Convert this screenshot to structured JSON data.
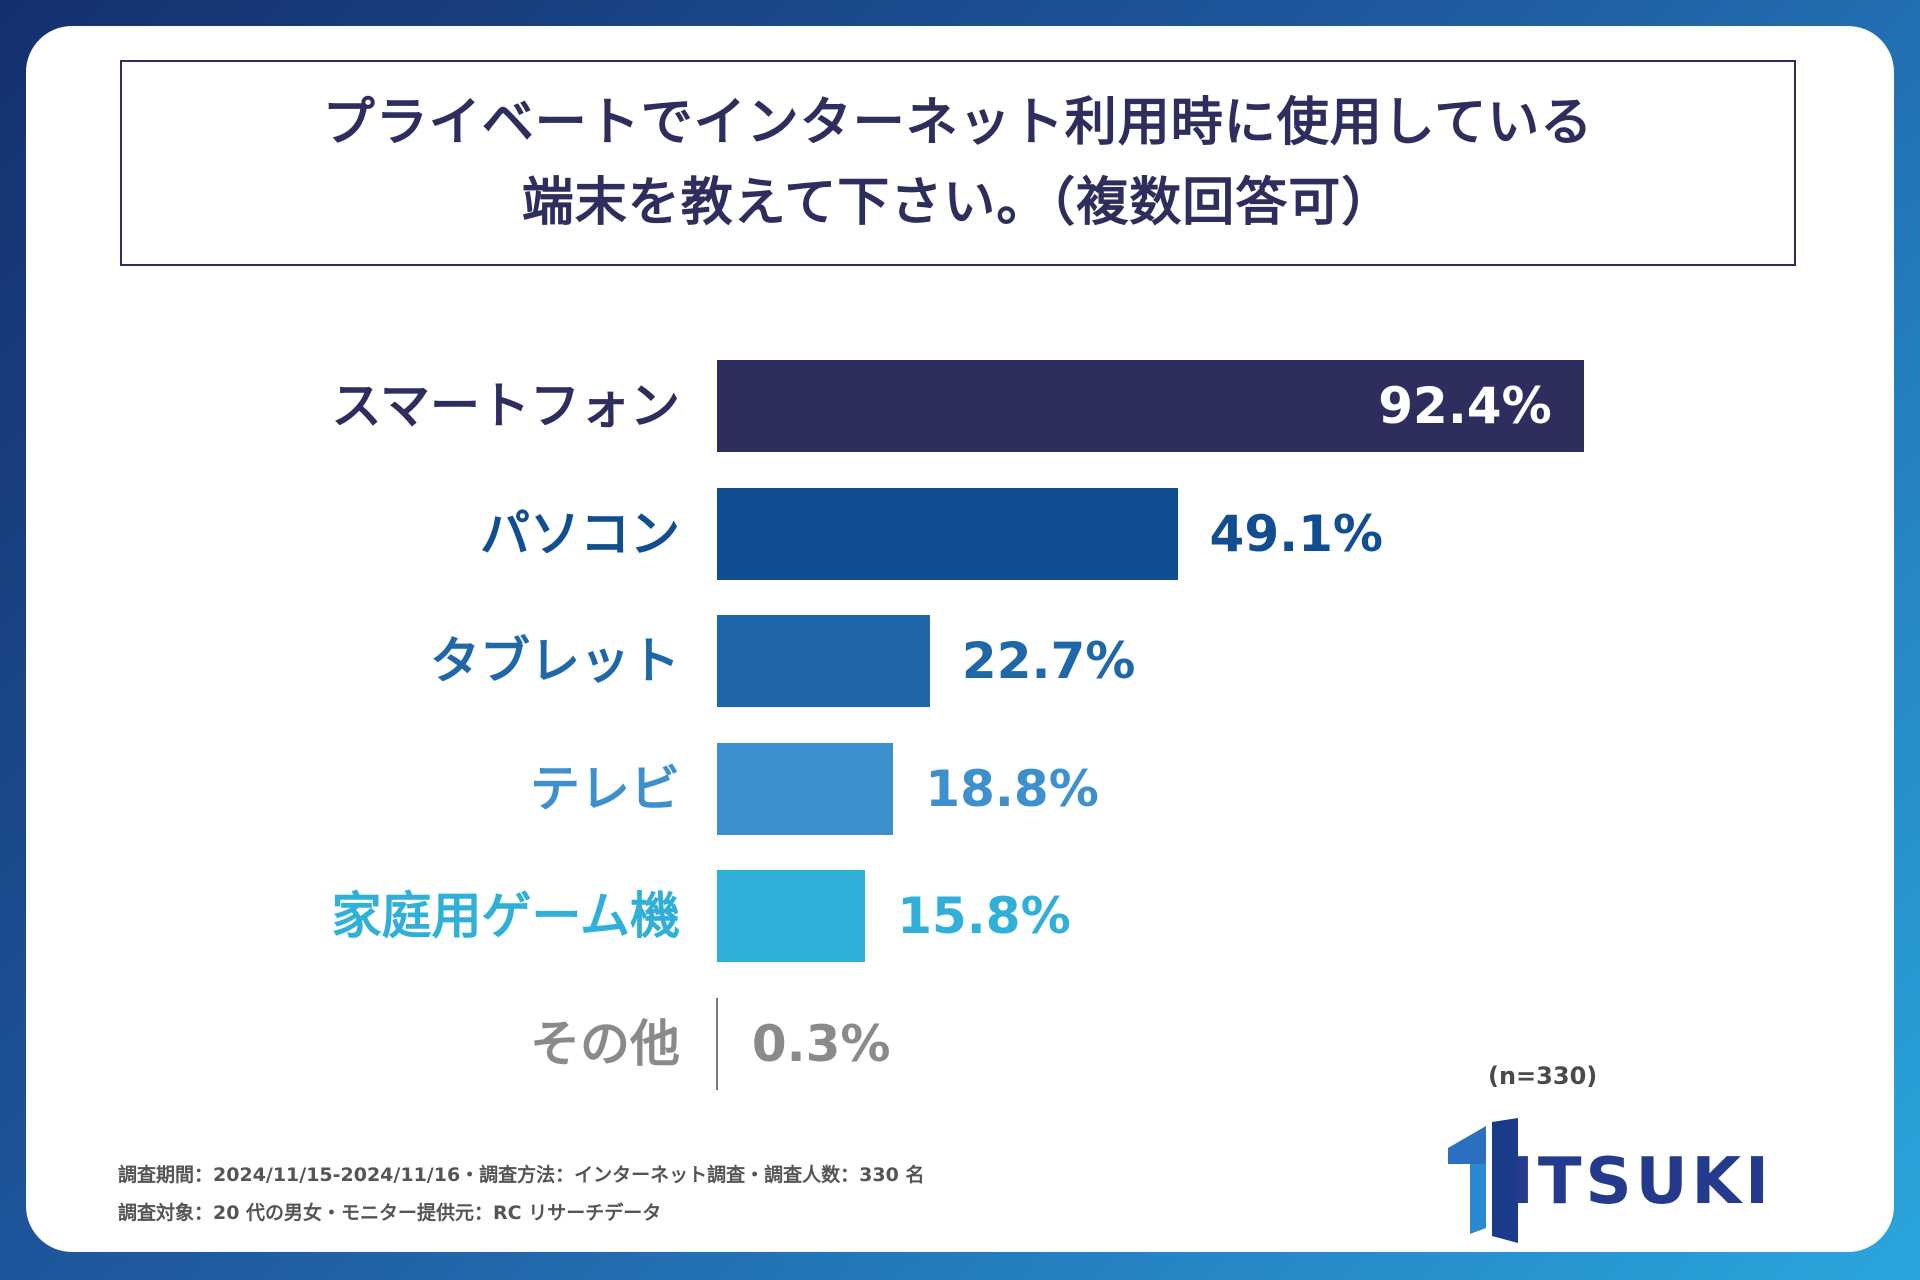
{
  "chart_data": {
    "type": "bar",
    "orientation": "horizontal",
    "title": "プライベートでインターネット利用時に使用している端末を教えて下さい。（複数回答可）",
    "title_lines": [
      "プライベートでインターネット利用時に使用している",
      "端末を教えて下さい。（複数回答可）"
    ],
    "categories": [
      "スマートフォン",
      "パソコン",
      "タブレット",
      "テレビ",
      "家庭用ゲーム機",
      "その他"
    ],
    "values": [
      92.4,
      49.1,
      22.7,
      18.8,
      15.8,
      0.3
    ],
    "value_labels": [
      "92.4%",
      "49.1%",
      "22.7%",
      "18.8%",
      "15.8%",
      "0.3%"
    ],
    "colors": [
      "#2e2e5e",
      "#114d91",
      "#1f67a8",
      "#3e90cc",
      "#30b0d9",
      "#8a8a8a"
    ],
    "unit": "%",
    "xlim": [
      0,
      100
    ],
    "sample_note": "(n=330)"
  },
  "footer": {
    "line1": "調査期間：2024/11/15-2024/11/16・調査方法：インターネット調査・調査人数：330 名",
    "line2": "調査対象：20 代の男女・モニター提供元：RC リサーチデータ"
  },
  "logo": {
    "text": "ITSUKI",
    "color": "#243a8c"
  }
}
